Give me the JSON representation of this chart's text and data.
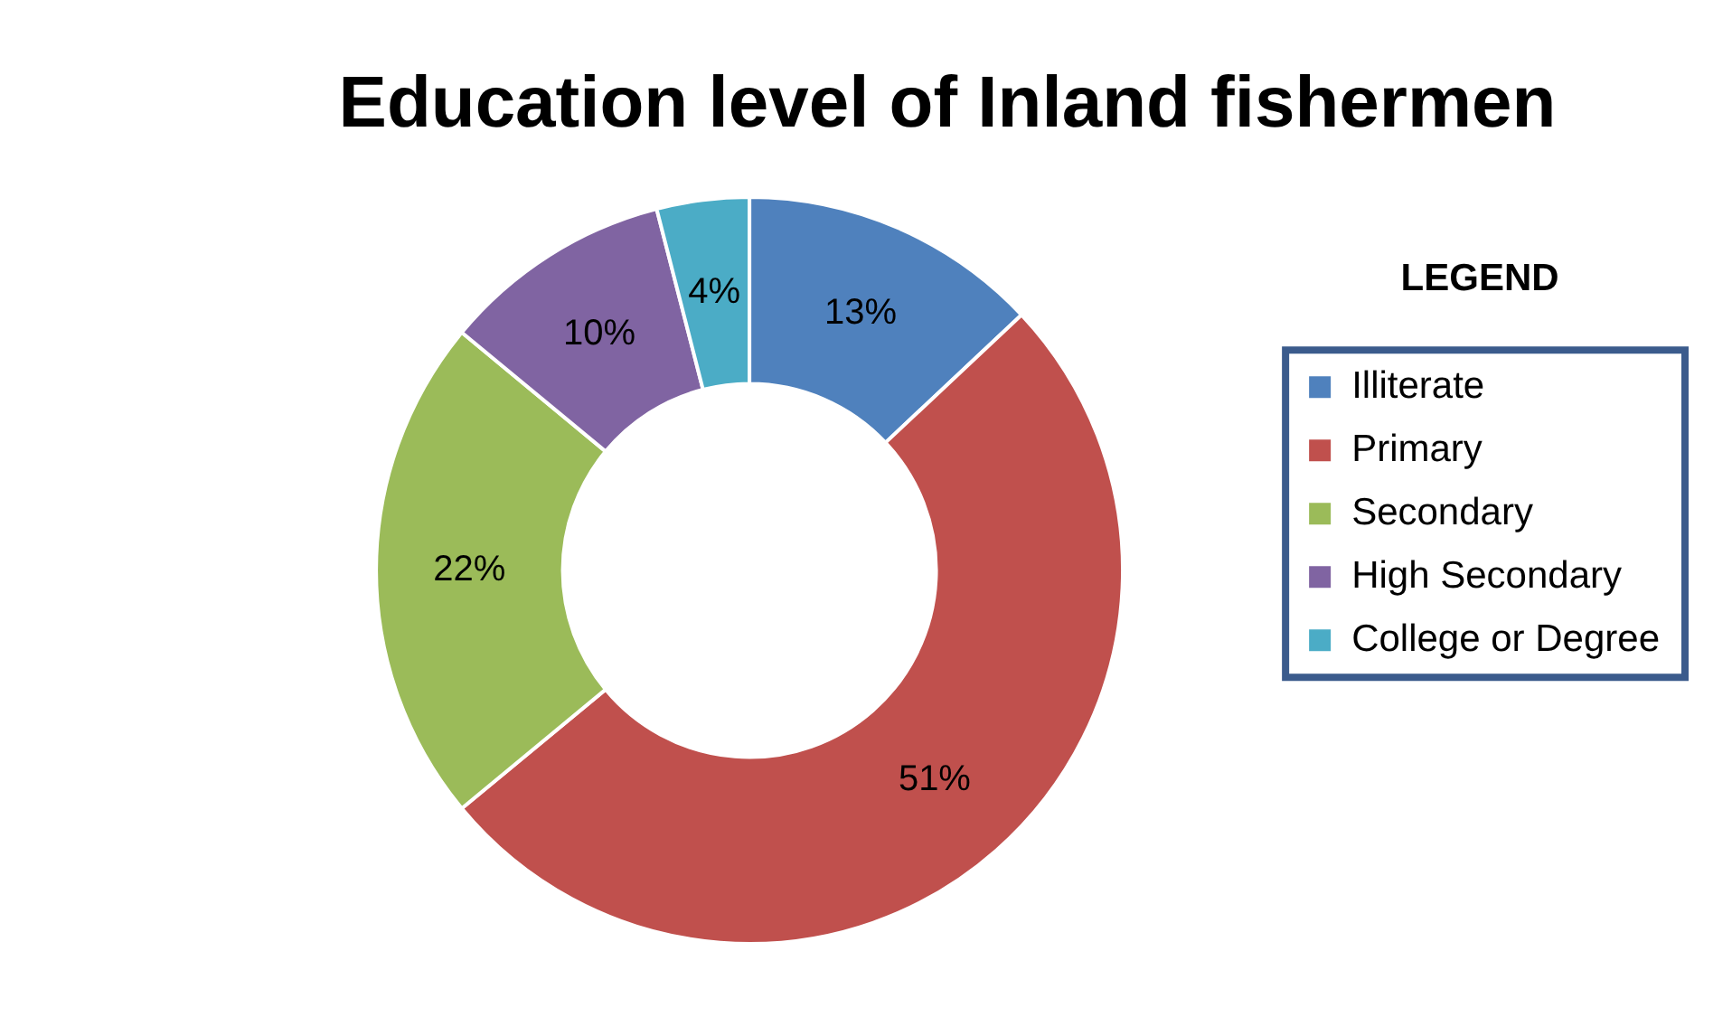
{
  "chart_data": {
    "type": "donut",
    "title": "Education level of Inland fishermen",
    "categories": [
      "Illiterate",
      "Primary",
      "Secondary",
      "High Secondary",
      "College or Degree"
    ],
    "values": [
      13,
      51,
      22,
      10,
      4
    ],
    "value_labels": [
      "13%",
      "51%",
      "22%",
      "10%",
      "4%"
    ],
    "colors": [
      "#4f81bd",
      "#c0504d",
      "#9bbb59",
      "#8064a2",
      "#4bacc6"
    ],
    "legend": "right",
    "legend_title": "LEGEND"
  }
}
